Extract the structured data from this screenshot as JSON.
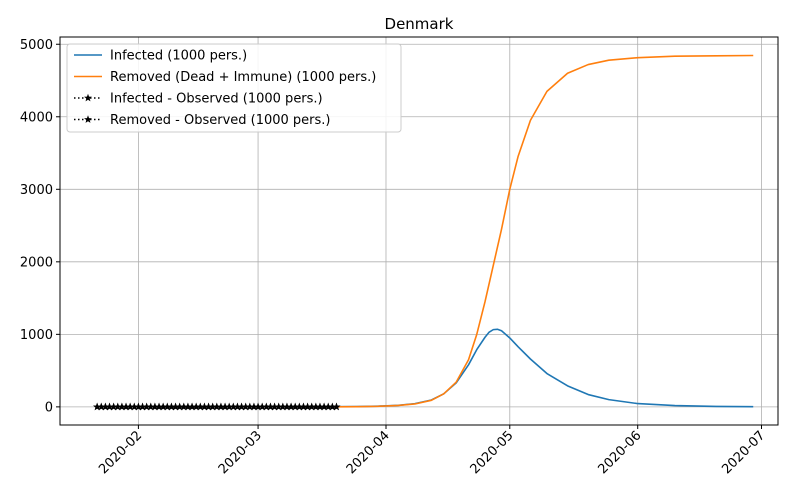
{
  "chart_data": {
    "type": "line",
    "title": "Denmark",
    "xlabel": "",
    "ylabel": "",
    "x_axis_type": "date",
    "xlim": [
      "2020-01-13",
      "2020-07-05"
    ],
    "ylim": [
      -250,
      5100
    ],
    "grid": true,
    "legend_position": "top-left",
    "x_ticks": [
      "2020-02-01",
      "2020-03-01",
      "2020-04-01",
      "2020-05-01",
      "2020-06-01",
      "2020-07-01"
    ],
    "x_tick_labels": [
      "2020-02",
      "2020-03",
      "2020-04",
      "2020-05",
      "2020-06",
      "2020-07"
    ],
    "y_ticks": [
      0,
      1000,
      2000,
      3000,
      4000,
      5000
    ],
    "y_tick_labels": [
      "0",
      "1000",
      "2000",
      "3000",
      "4000",
      "5000"
    ],
    "series": [
      {
        "name": "Infected (1000 pers.)",
        "style": "line",
        "color": "#1f77b4",
        "x": [
          "2020-03-20",
          "2020-03-25",
          "2020-03-30",
          "2020-04-04",
          "2020-04-08",
          "2020-04-12",
          "2020-04-15",
          "2020-04-18",
          "2020-04-21",
          "2020-04-23",
          "2020-04-25",
          "2020-04-26",
          "2020-04-27",
          "2020-04-28",
          "2020-04-29",
          "2020-05-01",
          "2020-05-03",
          "2020-05-06",
          "2020-05-10",
          "2020-05-15",
          "2020-05-20",
          "2020-05-25",
          "2020-06-01",
          "2020-06-10",
          "2020-06-20",
          "2020-06-29"
        ],
        "y": [
          2,
          4,
          10,
          22,
          45,
          95,
          180,
          330,
          580,
          790,
          960,
          1030,
          1065,
          1070,
          1050,
          950,
          830,
          660,
          460,
          290,
          170,
          100,
          45,
          18,
          6,
          2
        ]
      },
      {
        "name": "Removed (Dead + Immune) (1000 pers.)",
        "style": "line",
        "color": "#ff7f0e",
        "x": [
          "2020-03-20",
          "2020-03-25",
          "2020-03-30",
          "2020-04-04",
          "2020-04-08",
          "2020-04-12",
          "2020-04-15",
          "2020-04-18",
          "2020-04-21",
          "2020-04-23",
          "2020-04-25",
          "2020-04-27",
          "2020-04-29",
          "2020-05-01",
          "2020-05-03",
          "2020-05-06",
          "2020-05-10",
          "2020-05-15",
          "2020-05-20",
          "2020-05-25",
          "2020-06-01",
          "2020-06-10",
          "2020-06-20",
          "2020-06-29"
        ],
        "y": [
          1,
          3,
          8,
          20,
          40,
          90,
          180,
          340,
          650,
          1000,
          1450,
          1950,
          2450,
          3000,
          3450,
          3950,
          4350,
          4600,
          4720,
          4780,
          4815,
          4835,
          4840,
          4845
        ]
      },
      {
        "name": "Infected - Observed (1000 pers.)",
        "style": "dotted-star",
        "color": "#000000",
        "x_start": "2020-01-22",
        "x_end": "2020-03-20",
        "step_days": 1,
        "value": 0
      },
      {
        "name": "Removed - Observed (1000 pers.)",
        "style": "dotted-star",
        "color": "#000000",
        "x_start": "2020-01-22",
        "x_end": "2020-03-20",
        "step_days": 1,
        "value": 0
      }
    ]
  }
}
